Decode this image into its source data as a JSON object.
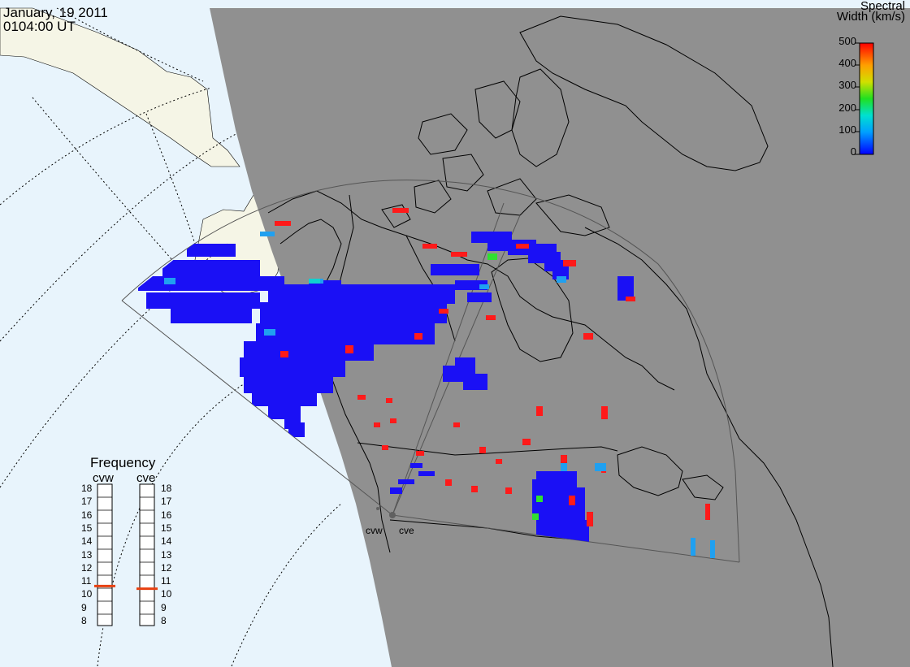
{
  "header": {
    "date": "January, 19 2011",
    "time": "0104:00 UT"
  },
  "colorbar": {
    "title_line1": "Spectral",
    "title_line2": "Width (km/s)",
    "ticks": [
      "500",
      "400",
      "300",
      "200",
      "100",
      "0"
    ]
  },
  "frequency_panel": {
    "title": "Frequency",
    "radars": [
      {
        "name": "cvw",
        "current_mhz": 10.8
      },
      {
        "name": "cve",
        "current_mhz": 10.6
      }
    ],
    "scale": [
      "18",
      "17",
      "16",
      "15",
      "14",
      "13",
      "12",
      "11",
      "10",
      "9",
      "8"
    ]
  },
  "radar_sites": [
    "cvw",
    "cve"
  ],
  "colors": {
    "ocean": "#e8f4fc",
    "night_side": "#909090",
    "sunlit_land": "#f5f5e6",
    "coastline": "#000000",
    "frequency_marker": "#e84010",
    "scatter_low": "#1a10f5",
    "scatter_high": "#ff1a1a"
  }
}
